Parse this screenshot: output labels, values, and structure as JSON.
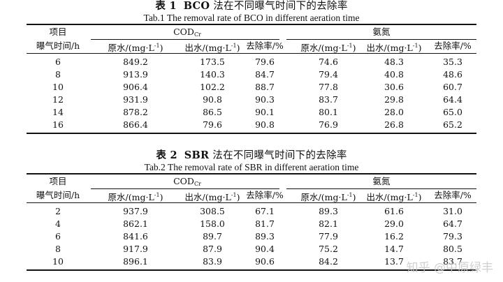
{
  "table1": {
    "caption_cn_num": "表 1",
    "caption_cn_bold": "BCO",
    "caption_cn_rest": " 法在不同曝气时间下的去除率",
    "caption_en": "Tab.1    The removal rate of BCO in different aeration time",
    "rows": [
      [
        "6",
        "849.2",
        "173.5",
        "79.6",
        "74.6",
        "48.3",
        "35.3"
      ],
      [
        "8",
        "913.9",
        "140.3",
        "84.7",
        "79.4",
        "40.8",
        "48.6"
      ],
      [
        "10",
        "906.4",
        "102.2",
        "88.7",
        "77.8",
        "30.6",
        "60.7"
      ],
      [
        "12",
        "931.9",
        "90.8",
        "90.3",
        "83.7",
        "29.8",
        "64.4"
      ],
      [
        "14",
        "878.2",
        "86.5",
        "90.1",
        "80.1",
        "28.0",
        "65.0"
      ],
      [
        "16",
        "866.4",
        "79.6",
        "90.8",
        "76.9",
        "26.8",
        "65.2"
      ]
    ]
  },
  "table2": {
    "caption_cn_num": "表 2",
    "caption_cn_bold": "SBR",
    "caption_cn_rest": " 法在不同曝气时间下的去除率",
    "caption_en": "Tab.2    The removal rate of SBR in different aeration time",
    "rows": [
      [
        "2",
        "937.9",
        "308.5",
        "67.1",
        "89.3",
        "61.6",
        "31.0"
      ],
      [
        "4",
        "862.1",
        "158.0",
        "81.7",
        "82.1",
        "29.0",
        "64.7"
      ],
      [
        "6",
        "841.6",
        "89.7",
        "89.3",
        "77.9",
        "16.2",
        "79.3"
      ],
      [
        "8",
        "917.9",
        "87.9",
        "90.4",
        "75.2",
        "14.7",
        "80.5"
      ],
      [
        "10",
        "896.1",
        "83.9",
        "90.6",
        "84.2",
        "13.7",
        "83.7"
      ]
    ]
  },
  "headers": {
    "item": "项目",
    "cod_main": "COD",
    "cod_sub": "Cr",
    "nh_group": "氨氮",
    "aeration_time": "曝气时间/h",
    "raw_water": "原水/(mg·L",
    "effluent": "出水/(mg·L",
    "unit_exp": "-1",
    "unit_close": ")",
    "removal": "去除率/%"
  },
  "watermark": "知乎 @中原绿丰"
}
